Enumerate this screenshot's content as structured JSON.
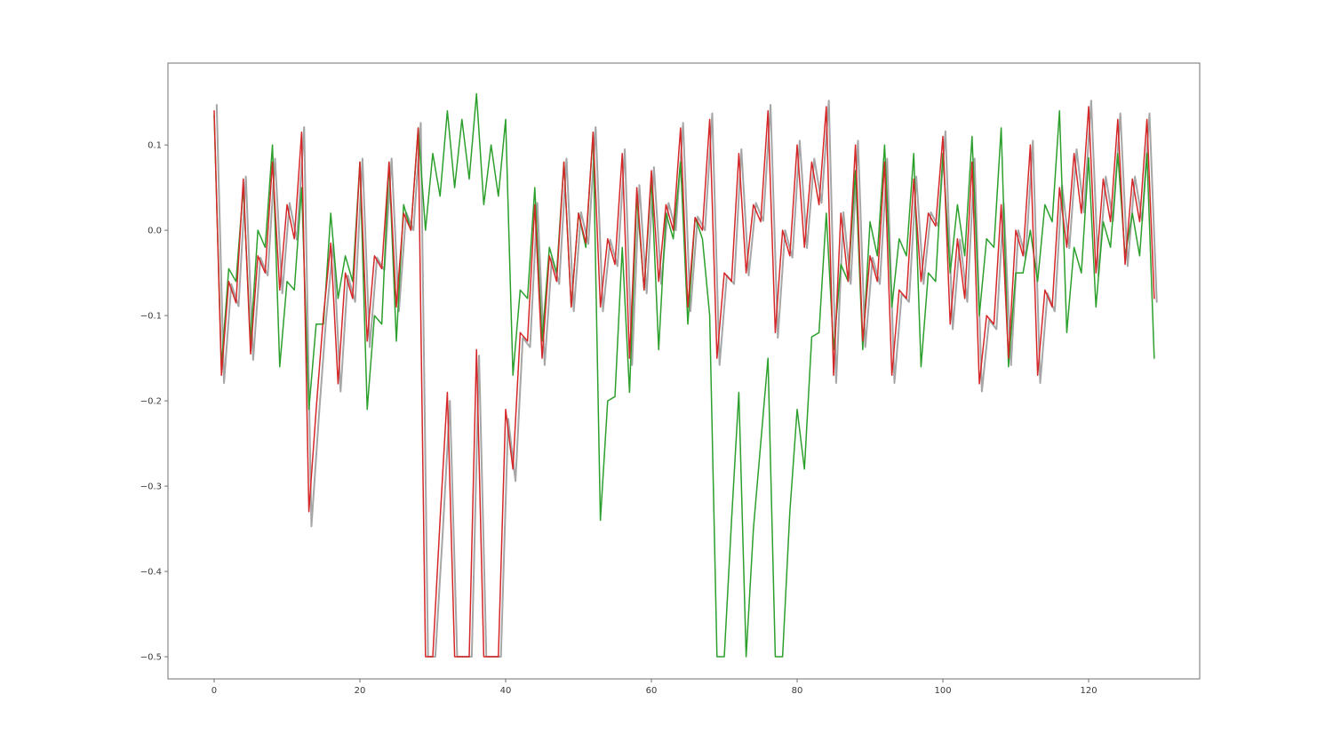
{
  "figure": {
    "background": "#ffffff"
  },
  "chart_data": {
    "type": "line",
    "title": "",
    "xlabel": "",
    "ylabel": "",
    "grid": false,
    "legend": null,
    "xlim": [
      -6.34,
      135.24
    ],
    "ylim": [
      -0.526,
      0.196
    ],
    "x_start": 0,
    "x_step": 1,
    "x_ticks": [
      0,
      20,
      40,
      60,
      80,
      100,
      120
    ],
    "x_tick_labels": [
      "0",
      "20",
      "40",
      "60",
      "80",
      "100",
      "120"
    ],
    "y_ticks": [
      0.1,
      0.0,
      -0.1,
      -0.2,
      -0.3,
      -0.4,
      -0.5
    ],
    "y_tick_labels": [
      "0.1",
      "0.0",
      "−0.1",
      "−0.2",
      "−0.3",
      "−0.4",
      "−0.5"
    ],
    "spine_color": "#707070",
    "series": [
      {
        "name": "gray-shadow-series",
        "color": "#a6a6a6",
        "width": 2.0,
        "x_offset": 0.35,
        "values": [
          0.147,
          -0.179,
          -0.063,
          -0.089,
          0.063,
          -0.152,
          -0.032,
          -0.053,
          0.084,
          -0.074,
          0.032,
          -0.011,
          0.121,
          -0.347,
          -0.221,
          -0.105,
          -0.016,
          -0.189,
          -0.053,
          -0.084,
          0.084,
          -0.137,
          -0.032,
          -0.047,
          0.084,
          -0.095,
          0.021,
          0.0,
          0.126,
          -0.5,
          -0.5,
          -0.357,
          -0.2,
          -0.5,
          -0.5,
          -0.5,
          -0.147,
          -0.5,
          -0.5,
          -0.5,
          -0.221,
          -0.294,
          -0.126,
          -0.137,
          0.032,
          -0.158,
          -0.032,
          -0.063,
          0.084,
          -0.095,
          0.021,
          -0.016,
          0.121,
          -0.095,
          -0.011,
          -0.042,
          0.095,
          -0.158,
          0.053,
          -0.074,
          0.074,
          -0.063,
          0.032,
          0.0,
          0.126,
          -0.095,
          0.016,
          0.0,
          0.137,
          -0.158,
          -0.053,
          -0.063,
          0.095,
          -0.053,
          0.032,
          0.011,
          0.147,
          -0.126,
          0.0,
          -0.032,
          0.105,
          -0.021,
          0.084,
          0.032,
          0.152,
          -0.179,
          0.021,
          -0.063,
          0.105,
          -0.137,
          -0.032,
          -0.063,
          0.084,
          -0.179,
          -0.074,
          -0.084,
          0.063,
          -0.063,
          0.021,
          0.005,
          0.116,
          -0.116,
          -0.011,
          -0.084,
          0.084,
          -0.189,
          -0.105,
          -0.116,
          0.032,
          -0.158,
          0.0,
          -0.032,
          0.105,
          -0.179,
          -0.074,
          -0.095,
          0.053,
          -0.021,
          0.095,
          0.021,
          0.152,
          -0.053,
          0.063,
          0.011,
          0.137,
          -0.042,
          0.063,
          0.011,
          0.137,
          -0.084
        ]
      },
      {
        "name": "green-series",
        "color": "#2ca02c",
        "width": 1.5,
        "x_offset": 0,
        "values": [
          0.135,
          -0.16,
          -0.045,
          -0.06,
          0.05,
          -0.13,
          0.0,
          -0.02,
          0.1,
          -0.16,
          -0.06,
          -0.07,
          0.05,
          -0.21,
          -0.11,
          -0.11,
          0.02,
          -0.08,
          -0.03,
          -0.06,
          0.08,
          -0.21,
          -0.1,
          -0.11,
          0.08,
          -0.13,
          0.03,
          0.0,
          0.12,
          0.0,
          0.09,
          0.04,
          0.14,
          0.05,
          0.13,
          0.06,
          0.16,
          0.03,
          0.1,
          0.04,
          0.13,
          -0.17,
          -0.07,
          -0.08,
          0.05,
          -0.13,
          -0.02,
          -0.05,
          0.08,
          -0.09,
          0.02,
          -0.02,
          0.115,
          -0.34,
          -0.2,
          -0.195,
          -0.02,
          -0.19,
          0.04,
          -0.07,
          0.06,
          -0.14,
          0.02,
          -0.01,
          0.08,
          -0.11,
          0.015,
          -0.01,
          -0.1,
          -0.5,
          -0.5,
          -0.34,
          -0.19,
          -0.5,
          -0.35,
          -0.25,
          -0.15,
          -0.5,
          -0.5,
          -0.33,
          -0.21,
          -0.28,
          -0.125,
          -0.12,
          0.02,
          -0.14,
          -0.04,
          -0.06,
          0.07,
          -0.14,
          0.01,
          -0.03,
          0.1,
          -0.09,
          -0.01,
          -0.03,
          0.09,
          -0.16,
          -0.05,
          -0.06,
          0.09,
          -0.05,
          0.03,
          -0.03,
          0.11,
          -0.1,
          -0.01,
          -0.02,
          0.12,
          -0.16,
          -0.05,
          -0.05,
          0.0,
          -0.06,
          0.03,
          0.01,
          0.14,
          -0.12,
          -0.02,
          -0.05,
          0.085,
          -0.09,
          0.01,
          -0.02,
          0.09,
          -0.03,
          0.02,
          -0.03,
          0.09,
          -0.15
        ]
      },
      {
        "name": "red-series",
        "color": "#d62728",
        "width": 1.5,
        "x_offset": 0,
        "values": [
          0.14,
          -0.17,
          -0.06,
          -0.085,
          0.06,
          -0.145,
          -0.03,
          -0.05,
          0.08,
          -0.07,
          0.03,
          -0.01,
          0.115,
          -0.33,
          -0.21,
          -0.1,
          -0.015,
          -0.18,
          -0.05,
          -0.08,
          0.08,
          -0.13,
          -0.03,
          -0.045,
          0.08,
          -0.09,
          0.02,
          0.0,
          0.12,
          -0.5,
          -0.5,
          -0.34,
          -0.19,
          -0.5,
          -0.5,
          -0.5,
          -0.14,
          -0.5,
          -0.5,
          -0.5,
          -0.21,
          -0.28,
          -0.12,
          -0.13,
          0.03,
          -0.15,
          -0.03,
          -0.06,
          0.08,
          -0.09,
          0.02,
          -0.015,
          0.115,
          -0.09,
          -0.01,
          -0.04,
          0.09,
          -0.15,
          0.05,
          -0.07,
          0.07,
          -0.06,
          0.03,
          0.0,
          0.12,
          -0.09,
          0.015,
          0.0,
          0.13,
          -0.15,
          -0.05,
          -0.06,
          0.09,
          -0.05,
          0.03,
          0.01,
          0.14,
          -0.12,
          0.0,
          -0.03,
          0.1,
          -0.02,
          0.08,
          0.03,
          0.145,
          -0.17,
          0.02,
          -0.06,
          0.1,
          -0.13,
          -0.03,
          -0.06,
          0.08,
          -0.17,
          -0.07,
          -0.08,
          0.06,
          -0.06,
          0.02,
          0.005,
          0.11,
          -0.11,
          -0.01,
          -0.08,
          0.08,
          -0.18,
          -0.1,
          -0.11,
          0.03,
          -0.15,
          0.0,
          -0.03,
          0.1,
          -0.17,
          -0.07,
          -0.09,
          0.05,
          -0.02,
          0.09,
          0.02,
          0.145,
          -0.05,
          0.06,
          0.01,
          0.13,
          -0.04,
          0.06,
          0.01,
          0.13,
          -0.08
        ]
      }
    ]
  }
}
